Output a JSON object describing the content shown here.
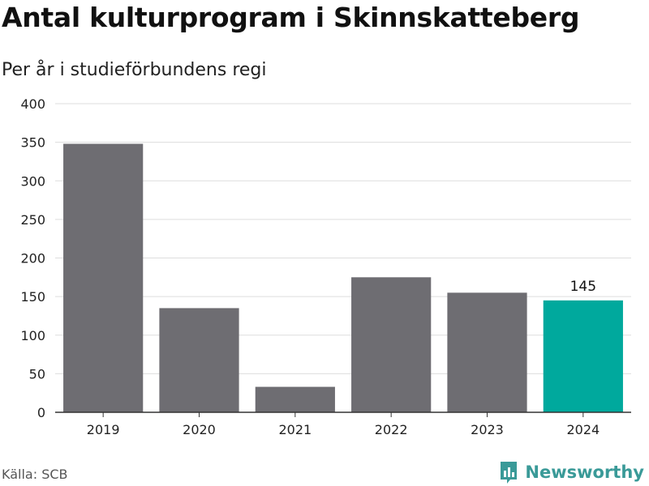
{
  "header": {
    "title": "Antal kulturprogram i Skinnskatteberg",
    "subtitle": "Per år i studieförbundens regi"
  },
  "footer": {
    "source": "Källa: SCB",
    "brand": "Newsworthy"
  },
  "colors": {
    "bar": "#6e6d72",
    "highlight": "#00a99d",
    "grid": "#dddddd",
    "axis": "#333333",
    "brand": "#3a9a98"
  },
  "chart_data": {
    "type": "bar",
    "categories": [
      "2019",
      "2020",
      "2021",
      "2022",
      "2023",
      "2024"
    ],
    "values": [
      348,
      135,
      33,
      175,
      155,
      145
    ],
    "highlight_index": 5,
    "data_labels": [
      {
        "index": 5,
        "text": "145"
      }
    ],
    "ylim": [
      0,
      400
    ],
    "yticks": [
      0,
      50,
      100,
      150,
      200,
      250,
      300,
      350,
      400
    ],
    "grid": true,
    "title": "Antal kulturprogram i Skinnskatteberg",
    "subtitle": "Per år i studieförbundens regi",
    "xlabel": "",
    "ylabel": ""
  }
}
